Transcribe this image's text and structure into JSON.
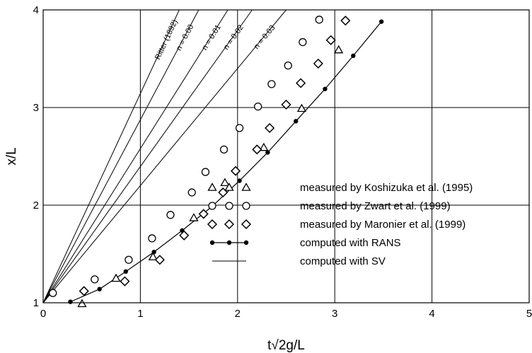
{
  "chart_data": {
    "type": "scatter",
    "xlabel": "t√2g/L",
    "ylabel": "x/L",
    "xlim": [
      0,
      5
    ],
    "ylim": [
      1,
      4
    ],
    "x_ticks": [
      "0",
      "1",
      "2",
      "3",
      "4",
      "5"
    ],
    "y_ticks": [
      "1",
      "2",
      "3",
      "4"
    ],
    "grid": true,
    "legend_position": "bottom-right",
    "series": [
      {
        "name": "measured by Koshizuka et al. (1995)",
        "marker": "triangle",
        "points": [
          [
            0.4,
            0.99
          ],
          [
            0.75,
            1.25
          ],
          [
            1.13,
            1.47
          ],
          [
            1.55,
            1.87
          ],
          [
            1.87,
            2.23
          ],
          [
            2.27,
            2.59
          ],
          [
            2.66,
            2.99
          ],
          [
            3.04,
            3.59
          ]
        ]
      },
      {
        "name": "measured by Zwart et al. (1999)",
        "marker": "circle",
        "points": [
          [
            0.1,
            1.1
          ],
          [
            0.53,
            1.24
          ],
          [
            0.88,
            1.44
          ],
          [
            1.12,
            1.66
          ],
          [
            1.31,
            1.9
          ],
          [
            1.53,
            2.13
          ],
          [
            1.67,
            2.34
          ],
          [
            1.86,
            2.57
          ],
          [
            2.02,
            2.79
          ],
          [
            2.21,
            3.01
          ],
          [
            2.35,
            3.24
          ],
          [
            2.52,
            3.43
          ],
          [
            2.67,
            3.67
          ],
          [
            2.84,
            3.9
          ]
        ]
      },
      {
        "name": "measured by Maronier et al. (1999)",
        "marker": "diamond",
        "points": [
          [
            0.42,
            1.12
          ],
          [
            0.84,
            1.22
          ],
          [
            1.2,
            1.44
          ],
          [
            1.45,
            1.69
          ],
          [
            1.65,
            1.91
          ],
          [
            1.85,
            2.13
          ],
          [
            1.98,
            2.35
          ],
          [
            2.2,
            2.57
          ],
          [
            2.33,
            2.79
          ],
          [
            2.5,
            3.03
          ],
          [
            2.65,
            3.25
          ],
          [
            2.83,
            3.45
          ],
          [
            2.96,
            3.69
          ],
          [
            3.11,
            3.89
          ]
        ]
      },
      {
        "name": "computed with RANS",
        "marker": "dot-line",
        "points": [
          [
            0.28,
            1.01
          ],
          [
            0.58,
            1.14
          ],
          [
            0.85,
            1.32
          ],
          [
            1.14,
            1.52
          ],
          [
            1.43,
            1.74
          ],
          [
            1.73,
            1.98
          ],
          [
            2.02,
            2.25
          ],
          [
            2.31,
            2.54
          ],
          [
            2.6,
            2.86
          ],
          [
            2.9,
            3.19
          ],
          [
            3.19,
            3.53
          ],
          [
            3.48,
            3.88
          ]
        ]
      },
      {
        "name": "computed with SV",
        "marker": "line",
        "lines": [
          {
            "label": "Ritter (1892)",
            "points": [
              [
                0,
                1
              ],
              [
                1.4,
                4.0
              ]
            ]
          },
          {
            "label": "n = 0.00",
            "points": [
              [
                0,
                1
              ],
              [
                1.6,
                4.0
              ]
            ]
          },
          {
            "label": "n = 0.01",
            "points": [
              [
                0,
                1
              ],
              [
                1.9,
                4.0
              ]
            ]
          },
          {
            "label": "n = 0.02",
            "points": [
              [
                0,
                1
              ],
              [
                2.15,
                4.0
              ]
            ]
          },
          {
            "label": "n = 0.03",
            "points": [
              [
                0,
                1
              ],
              [
                2.5,
                4.0
              ]
            ]
          }
        ]
      }
    ],
    "legend": [
      {
        "label": "measured by Koshizuka et al. (1995)",
        "marker": "triangle"
      },
      {
        "label": "measured by Zwart et al. (1999)",
        "marker": "circle"
      },
      {
        "label": "measured by Maronier et al. (1999)",
        "marker": "diamond"
      },
      {
        "label": "computed with RANS",
        "marker": "dot-line"
      },
      {
        "label": "computed with SV",
        "marker": "line"
      }
    ]
  }
}
